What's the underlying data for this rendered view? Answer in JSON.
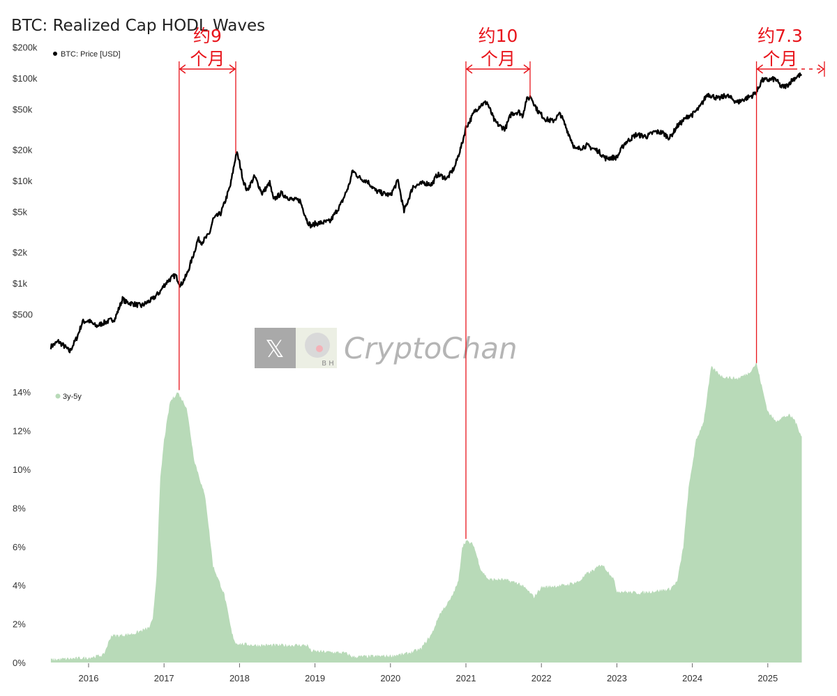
{
  "title": "BTC: Realized Cap HODL Waves",
  "watermark": {
    "text": "CryptoChan",
    "logo_glyph": "𝕏",
    "badge_text": "B H"
  },
  "colors": {
    "price": "#000000",
    "wave": "#b8dab8",
    "annotation": "#e8141b",
    "text": "#333333"
  },
  "chart_data": [
    {
      "type": "line",
      "scale": "log",
      "legend": "BTC: Price [USD]",
      "legend_position": "top-left",
      "ytick_labels": [
        "$200k",
        "$100k",
        "$50k",
        "$20k",
        "$10k",
        "$5k",
        "$2k",
        "$1k",
        "$500"
      ],
      "yticks": [
        200000,
        100000,
        50000,
        20000,
        10000,
        5000,
        2000,
        1000,
        500
      ],
      "xlim": [
        2015.5,
        2025.45
      ],
      "series": [
        {
          "name": "BTC: Price [USD]",
          "points": [
            [
              2015.5,
              240
            ],
            [
              2015.6,
              270
            ],
            [
              2015.7,
              235
            ],
            [
              2015.75,
              215
            ],
            [
              2015.85,
              300
            ],
            [
              2015.92,
              420
            ],
            [
              2016.0,
              430
            ],
            [
              2016.1,
              380
            ],
            [
              2016.2,
              410
            ],
            [
              2016.35,
              450
            ],
            [
              2016.45,
              700
            ],
            [
              2016.5,
              650
            ],
            [
              2016.55,
              640
            ],
            [
              2016.7,
              600
            ],
            [
              2016.85,
              700
            ],
            [
              2016.95,
              830
            ],
            [
              2017.0,
              950
            ],
            [
              2017.05,
              1050
            ],
            [
              2017.15,
              1200
            ],
            [
              2017.22,
              950
            ],
            [
              2017.3,
              1200
            ],
            [
              2017.4,
              2000
            ],
            [
              2017.45,
              2700
            ],
            [
              2017.5,
              2500
            ],
            [
              2017.6,
              3000
            ],
            [
              2017.65,
              4200
            ],
            [
              2017.75,
              4800
            ],
            [
              2017.8,
              6000
            ],
            [
              2017.88,
              9000
            ],
            [
              2017.96,
              19000
            ],
            [
              2018.0,
              15000
            ],
            [
              2018.05,
              10000
            ],
            [
              2018.1,
              8000
            ],
            [
              2018.2,
              11000
            ],
            [
              2018.3,
              7500
            ],
            [
              2018.4,
              9500
            ],
            [
              2018.45,
              6500
            ],
            [
              2018.55,
              7500
            ],
            [
              2018.7,
              6500
            ],
            [
              2018.8,
              6400
            ],
            [
              2018.9,
              4000
            ],
            [
              2018.95,
              3600
            ],
            [
              2019.0,
              3800
            ],
            [
              2019.2,
              4000
            ],
            [
              2019.35,
              6000
            ],
            [
              2019.45,
              9000
            ],
            [
              2019.5,
              12500
            ],
            [
              2019.6,
              10500
            ],
            [
              2019.7,
              9800
            ],
            [
              2019.8,
              8000
            ],
            [
              2019.9,
              7500
            ],
            [
              2020.0,
              7200
            ],
            [
              2020.1,
              10000
            ],
            [
              2020.18,
              5000
            ],
            [
              2020.3,
              8800
            ],
            [
              2020.45,
              9500
            ],
            [
              2020.55,
              9200
            ],
            [
              2020.62,
              11500
            ],
            [
              2020.75,
              10500
            ],
            [
              2020.85,
              13500
            ],
            [
              2020.95,
              23000
            ],
            [
              2021.0,
              33000
            ],
            [
              2021.05,
              38000
            ],
            [
              2021.12,
              48000
            ],
            [
              2021.2,
              55000
            ],
            [
              2021.28,
              58000
            ],
            [
              2021.38,
              38000
            ],
            [
              2021.45,
              34000
            ],
            [
              2021.52,
              32000
            ],
            [
              2021.6,
              45000
            ],
            [
              2021.7,
              47000
            ],
            [
              2021.75,
              43000
            ],
            [
              2021.8,
              61000
            ],
            [
              2021.86,
              66000
            ],
            [
              2021.95,
              48000
            ],
            [
              2022.05,
              40000
            ],
            [
              2022.15,
              38000
            ],
            [
              2022.25,
              45000
            ],
            [
              2022.35,
              30000
            ],
            [
              2022.45,
              20000
            ],
            [
              2022.6,
              22000
            ],
            [
              2022.75,
              19500
            ],
            [
              2022.85,
              16500
            ],
            [
              2022.95,
              16800
            ],
            [
              2023.0,
              16800
            ],
            [
              2023.1,
              23000
            ],
            [
              2023.25,
              28000
            ],
            [
              2023.4,
              27000
            ],
            [
              2023.5,
              30000
            ],
            [
              2023.6,
              29500
            ],
            [
              2023.7,
              26000
            ],
            [
              2023.8,
              34000
            ],
            [
              2023.95,
              43000
            ],
            [
              2024.0,
              44000
            ],
            [
              2024.1,
              52000
            ],
            [
              2024.2,
              70000
            ],
            [
              2024.35,
              63000
            ],
            [
              2024.45,
              68000
            ],
            [
              2024.6,
              58000
            ],
            [
              2024.7,
              63000
            ],
            [
              2024.8,
              68000
            ],
            [
              2024.86,
              75000
            ],
            [
              2024.92,
              95000
            ],
            [
              2025.0,
              96000
            ],
            [
              2025.1,
              98000
            ],
            [
              2025.18,
              82000
            ],
            [
              2025.25,
              84000
            ],
            [
              2025.33,
              97000
            ],
            [
              2025.4,
              105000
            ],
            [
              2025.45,
              108000
            ]
          ]
        }
      ]
    },
    {
      "type": "area",
      "legend": "3y-5y",
      "legend_position": "top-left",
      "ytick_labels": [
        "14%",
        "12%",
        "10%",
        "8%",
        "6%",
        "4%",
        "2%",
        "0%"
      ],
      "yticks": [
        14,
        12,
        10,
        8,
        6,
        4,
        2,
        0
      ],
      "ylim": [
        0,
        14
      ],
      "xtick_labels": [
        "2016",
        "2017",
        "2018",
        "2019",
        "2020",
        "2021",
        "2022",
        "2023",
        "2024",
        "2025"
      ],
      "xticks": [
        2016,
        2017,
        2018,
        2019,
        2020,
        2021,
        2022,
        2023,
        2024,
        2025
      ],
      "xlim": [
        2015.5,
        2025.45
      ],
      "series": [
        {
          "name": "3y-5y",
          "points": [
            [
              2015.5,
              0.15
            ],
            [
              2016.0,
              0.25
            ],
            [
              2016.2,
              0.4
            ],
            [
              2016.3,
              1.4
            ],
            [
              2016.4,
              1.4
            ],
            [
              2016.6,
              1.5
            ],
            [
              2016.8,
              1.8
            ],
            [
              2016.85,
              2.2
            ],
            [
              2016.9,
              4.5
            ],
            [
              2016.95,
              9.5
            ],
            [
              2017.0,
              11.5
            ],
            [
              2017.08,
              13.5
            ],
            [
              2017.18,
              14.0
            ],
            [
              2017.3,
              13.2
            ],
            [
              2017.4,
              10.5
            ],
            [
              2017.55,
              8.5
            ],
            [
              2017.65,
              5.0
            ],
            [
              2017.8,
              3.5
            ],
            [
              2017.9,
              1.5
            ],
            [
              2017.95,
              1.0
            ],
            [
              2018.2,
              0.9
            ],
            [
              2018.6,
              0.9
            ],
            [
              2018.9,
              0.9
            ],
            [
              2018.95,
              0.6
            ],
            [
              2019.4,
              0.5
            ],
            [
              2019.5,
              0.3
            ],
            [
              2020.0,
              0.35
            ],
            [
              2020.2,
              0.45
            ],
            [
              2020.4,
              0.7
            ],
            [
              2020.55,
              1.5
            ],
            [
              2020.65,
              2.5
            ],
            [
              2020.8,
              3.3
            ],
            [
              2020.9,
              4.2
            ],
            [
              2020.95,
              6.0
            ],
            [
              2021.0,
              6.3
            ],
            [
              2021.1,
              6.1
            ],
            [
              2021.2,
              4.8
            ],
            [
              2021.3,
              4.3
            ],
            [
              2021.5,
              4.3
            ],
            [
              2021.7,
              4.1
            ],
            [
              2021.8,
              3.8
            ],
            [
              2021.9,
              3.4
            ],
            [
              2022.0,
              3.9
            ],
            [
              2022.3,
              4.0
            ],
            [
              2022.5,
              4.2
            ],
            [
              2022.6,
              4.6
            ],
            [
              2022.7,
              4.8
            ],
            [
              2022.8,
              5.1
            ],
            [
              2022.95,
              4.4
            ],
            [
              2023.0,
              3.7
            ],
            [
              2023.3,
              3.6
            ],
            [
              2023.5,
              3.7
            ],
            [
              2023.7,
              3.8
            ],
            [
              2023.8,
              4.2
            ],
            [
              2023.88,
              6.0
            ],
            [
              2023.95,
              9.0
            ],
            [
              2024.05,
              11.5
            ],
            [
              2024.15,
              12.5
            ],
            [
              2024.25,
              15.3
            ],
            [
              2024.4,
              14.8
            ],
            [
              2024.6,
              14.7
            ],
            [
              2024.75,
              15.0
            ],
            [
              2024.85,
              15.5
            ],
            [
              2024.95,
              13.8
            ],
            [
              2025.0,
              13.0
            ],
            [
              2025.1,
              12.5
            ],
            [
              2025.2,
              12.7
            ],
            [
              2025.28,
              12.8
            ],
            [
              2025.35,
              12.6
            ],
            [
              2025.45,
              11.7
            ]
          ]
        }
      ]
    }
  ],
  "annotations": [
    {
      "line1": "约9",
      "line2": "个月",
      "start": 2017.2,
      "end": 2017.95,
      "open_ended": false
    },
    {
      "line1": "约10",
      "line2": "个月",
      "start": 2021.0,
      "end": 2021.85,
      "open_ended": false
    },
    {
      "line1": "约7.3",
      "line2": "个月",
      "start": 2024.85,
      "end": 2025.75,
      "open_ended": true
    }
  ]
}
